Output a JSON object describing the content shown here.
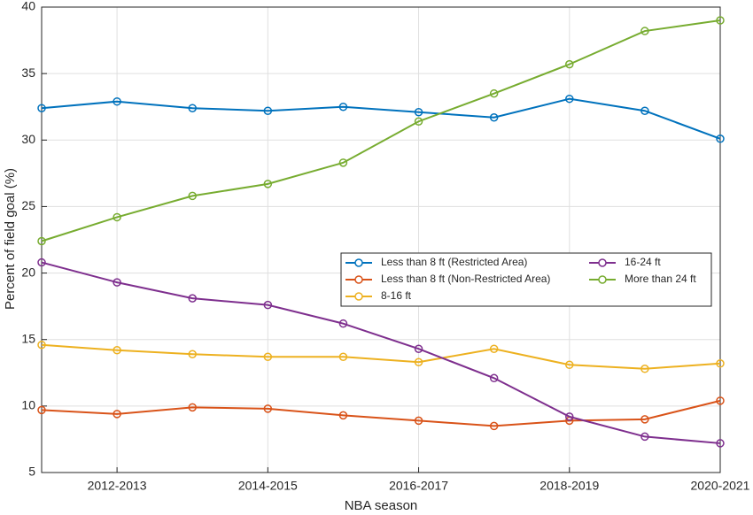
{
  "chart_data": {
    "type": "line",
    "x_label": "NBA season",
    "y_label": "Percent of field goal (%)",
    "categories": [
      null,
      "2012-2013",
      null,
      "2014-2015",
      null,
      "2016-2017",
      null,
      "2018-2019",
      null,
      "2020-2021"
    ],
    "ylim": [
      5,
      40
    ],
    "yticks": [
      5,
      10,
      15,
      20,
      25,
      30,
      35,
      40
    ],
    "grid": true,
    "series": [
      {
        "name": "Less than 8 ft (Restricted Area)",
        "color": "#0072bd",
        "values": [
          32.4,
          32.9,
          32.4,
          32.2,
          32.5,
          32.1,
          31.7,
          33.1,
          32.2,
          30.1
        ]
      },
      {
        "name": "Less than 8 ft (Non-Restricted Area)",
        "color": "#d95319",
        "values": [
          9.7,
          9.4,
          9.9,
          9.8,
          9.3,
          8.9,
          8.5,
          8.9,
          9.0,
          10.4
        ]
      },
      {
        "name": "8-16 ft",
        "color": "#edb120",
        "values": [
          14.6,
          14.2,
          13.9,
          13.7,
          13.7,
          13.3,
          14.3,
          13.1,
          12.8,
          13.2
        ]
      },
      {
        "name": "16-24 ft",
        "color": "#7e2f8e",
        "values": [
          20.8,
          19.3,
          18.1,
          17.6,
          16.2,
          14.3,
          12.1,
          9.2,
          7.7,
          7.2
        ]
      },
      {
        "name": "More than 24 ft",
        "color": "#77ac30",
        "values": [
          22.4,
          24.2,
          25.8,
          26.7,
          28.3,
          31.4,
          33.5,
          35.7,
          38.2,
          39.0
        ]
      }
    ]
  }
}
